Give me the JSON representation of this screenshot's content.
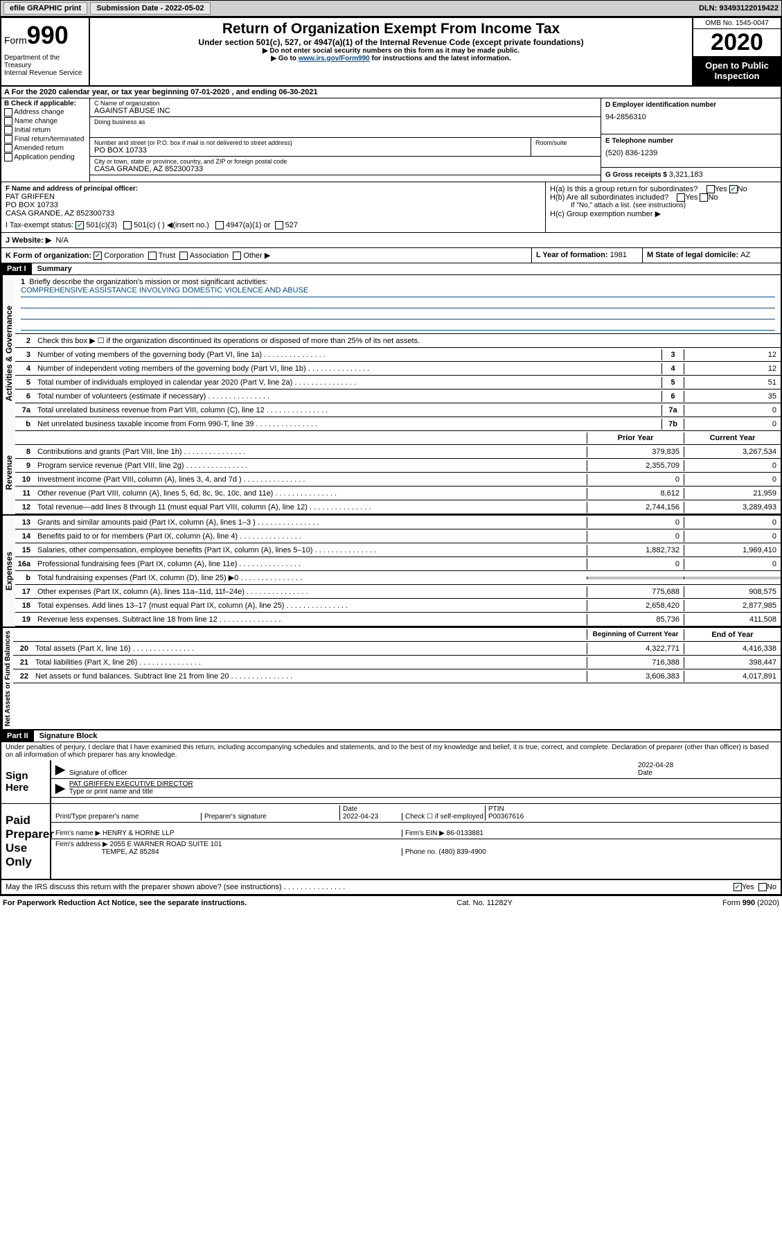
{
  "header_bar": {
    "efile": "efile GRAPHIC print",
    "sub_label": "Submission Date - ",
    "sub_date": "2022-05-02",
    "dln": "DLN: 93493122019422"
  },
  "top": {
    "form_label": "Form",
    "form_num": "990",
    "title": "Return of Organization Exempt From Income Tax",
    "sub1": "Under section 501(c), 527, or 4947(a)(1) of the Internal Revenue Code (except private foundations)",
    "sub2": "▶ Do not enter social security numbers on this form as it may be made public.",
    "sub3_pre": "▶ Go to ",
    "sub3_link": "www.irs.gov/Form990",
    "sub3_post": " for instructions and the latest information.",
    "dept": "Department of the Treasury\nInternal Revenue Service",
    "omb": "OMB No. 1545-0047",
    "year": "2020",
    "open": "Open to Public Inspection"
  },
  "row_a": "A For the 2020 calendar year, or tax year beginning 07-01-2020   , and ending 06-30-2021",
  "section_b": {
    "title": "B Check if applicable:",
    "opts": [
      "Address change",
      "Name change",
      "Initial return",
      "Final return/terminated",
      "Amended return",
      "Application pending"
    ]
  },
  "section_c": {
    "name_label": "C Name of organization",
    "name": "AGAINST ABUSE INC",
    "dba_label": "Doing business as",
    "dba": "",
    "addr_label": "Number and street (or P.O. box if mail is not delivered to street address)",
    "addr": "PO BOX 10733",
    "room_label": "Room/suite",
    "city_label": "City or town, state or province, country, and ZIP or foreign postal code",
    "city": "CASA GRANDE, AZ  852300733"
  },
  "section_d": {
    "ein_label": "D Employer identification number",
    "ein": "94-2856310",
    "phone_label": "E Telephone number",
    "phone": "(520) 836-1239",
    "gross_label": "G Gross receipts $ ",
    "gross": "3,321,183"
  },
  "section_f": {
    "label": "F  Name and address of principal officer:",
    "name": "PAT GRIFFEN",
    "addr1": "PO BOX 10733",
    "addr2": "CASA GRANDE, AZ  852300733"
  },
  "section_h": {
    "ha": "H(a)  Is this a group return for subordinates?",
    "hb": "H(b)  Are all subordinates included?",
    "hb_note": "If \"No,\" attach a list. (see instructions)",
    "hc": "H(c)  Group exemption number ▶"
  },
  "section_i": {
    "label": "I     Tax-exempt status:",
    "opt1": "501(c)(3)",
    "opt2": "501(c) (   ) ◀(insert no.)",
    "opt3": "4947(a)(1) or",
    "opt4": "527"
  },
  "section_j": {
    "label": "J     Website: ▶",
    "val": "N/A"
  },
  "section_k": {
    "label": "K Form of organization:",
    "opts": [
      "Corporation",
      "Trust",
      "Association",
      "Other ▶"
    ]
  },
  "section_l": {
    "label": "L Year of formation: ",
    "val": "1981"
  },
  "section_m": {
    "label": "M State of legal domicile: ",
    "val": "AZ"
  },
  "part1": {
    "header": "Part I",
    "title": "Summary",
    "line1_label": "Briefly describe the organization's mission or most significant activities:",
    "line1_val": "COMPREHENSIVE ASSISTANCE INVOLVING DOMESTIC VIOLENCE AND ABUSE",
    "line2": "Check this box ▶ ☐  if the organization discontinued its operations or disposed of more than 25% of its net assets."
  },
  "vert_labels": {
    "gov": "Activities & Governance",
    "rev": "Revenue",
    "exp": "Expenses",
    "net": "Net Assets or Fund Balances"
  },
  "gov_lines": [
    {
      "n": "3",
      "t": "Number of voting members of the governing body (Part VI, line 1a)",
      "c": "3",
      "v": "12"
    },
    {
      "n": "4",
      "t": "Number of independent voting members of the governing body (Part VI, line 1b)",
      "c": "4",
      "v": "12"
    },
    {
      "n": "5",
      "t": "Total number of individuals employed in calendar year 2020 (Part V, line 2a)",
      "c": "5",
      "v": "51"
    },
    {
      "n": "6",
      "t": "Total number of volunteers (estimate if necessary)",
      "c": "6",
      "v": "35"
    },
    {
      "n": "7a",
      "t": "Total unrelated business revenue from Part VIII, column (C), line 12",
      "c": "7a",
      "v": "0"
    },
    {
      "n": "b",
      "t": "Net unrelated business taxable income from Form 990-T, line 39",
      "c": "7b",
      "v": "0"
    }
  ],
  "rev_header": {
    "prior": "Prior Year",
    "current": "Current Year"
  },
  "rev_lines": [
    {
      "n": "8",
      "t": "Contributions and grants (Part VIII, line 1h)",
      "p": "379,835",
      "c": "3,267,534"
    },
    {
      "n": "9",
      "t": "Program service revenue (Part VIII, line 2g)",
      "p": "2,355,709",
      "c": "0"
    },
    {
      "n": "10",
      "t": "Investment income (Part VIII, column (A), lines 3, 4, and 7d )",
      "p": "0",
      "c": "0"
    },
    {
      "n": "11",
      "t": "Other revenue (Part VIII, column (A), lines 5, 6d, 8c, 9c, 10c, and 11e)",
      "p": "8,612",
      "c": "21,959"
    },
    {
      "n": "12",
      "t": "Total revenue—add lines 8 through 11 (must equal Part VIII, column (A), line 12)",
      "p": "2,744,156",
      "c": "3,289,493"
    }
  ],
  "exp_lines": [
    {
      "n": "13",
      "t": "Grants and similar amounts paid (Part IX, column (A), lines 1–3 )",
      "p": "0",
      "c": "0"
    },
    {
      "n": "14",
      "t": "Benefits paid to or for members (Part IX, column (A), line 4)",
      "p": "0",
      "c": "0"
    },
    {
      "n": "15",
      "t": "Salaries, other compensation, employee benefits (Part IX, column (A), lines 5–10)",
      "p": "1,882,732",
      "c": "1,969,410"
    },
    {
      "n": "16a",
      "t": "Professional fundraising fees (Part IX, column (A), line 11e)",
      "p": "0",
      "c": "0"
    },
    {
      "n": "b",
      "t": "Total fundraising expenses (Part IX, column (D), line 25) ▶0",
      "p": "grey",
      "c": "grey"
    },
    {
      "n": "17",
      "t": "Other expenses (Part IX, column (A), lines 11a–11d, 11f–24e)",
      "p": "775,688",
      "c": "908,575"
    },
    {
      "n": "18",
      "t": "Total expenses. Add lines 13–17 (must equal Part IX, column (A), line 25)",
      "p": "2,658,420",
      "c": "2,877,985"
    },
    {
      "n": "19",
      "t": "Revenue less expenses. Subtract line 18 from line 12",
      "p": "85,736",
      "c": "411,508"
    }
  ],
  "net_header": {
    "prior": "Beginning of Current Year",
    "current": "End of Year"
  },
  "net_lines": [
    {
      "n": "20",
      "t": "Total assets (Part X, line 16)",
      "p": "4,322,771",
      "c": "4,416,338"
    },
    {
      "n": "21",
      "t": "Total liabilities (Part X, line 26)",
      "p": "716,388",
      "c": "398,447"
    },
    {
      "n": "22",
      "t": "Net assets or fund balances. Subtract line 21 from line 20",
      "p": "3,606,383",
      "c": "4,017,891"
    }
  ],
  "part2": {
    "header": "Part II",
    "title": "Signature Block",
    "decl": "Under penalties of perjury, I declare that I have examined this return, including accompanying schedules and statements, and to the best of my knowledge and belief, it is true, correct, and complete. Declaration of preparer (other than officer) is based on all information of which preparer has any knowledge."
  },
  "sign": {
    "here": "Sign Here",
    "sig_label": "Signature of officer",
    "date_label": "Date",
    "date_val": "2022-04-28",
    "name": "PAT GRIFFEN EXECUTIVE DIRECTOR",
    "name_label": "Type or print name and title"
  },
  "paid": {
    "label": "Paid Preparer Use Only",
    "col1": "Print/Type preparer's name",
    "col2": "Preparer's signature",
    "col3_label": "Date",
    "col3_val": "2022-04-23",
    "col4_label": "Check ☐ if self-employed",
    "col5_label": "PTIN",
    "col5_val": "P00367616",
    "firm_label": "Firm's name      ▶ ",
    "firm_val": "HENRY & HORNE LLP",
    "ein_label": "Firm's EIN ▶ ",
    "ein_val": "86-0133881",
    "addr_label": "Firm's address ▶ ",
    "addr_val": "2055 E WARNER ROAD SUITE 101",
    "addr_val2": "TEMPE, AZ  85284",
    "phone_label": "Phone no. ",
    "phone_val": "(480) 839-4900"
  },
  "discuss": "May the IRS discuss this return with the preparer shown above? (see instructions)",
  "footer": {
    "left": "For Paperwork Reduction Act Notice, see the separate instructions.",
    "mid": "Cat. No. 11282Y",
    "right": "Form 990 (2020)"
  },
  "yesno": {
    "yes": "Yes",
    "no": "No"
  }
}
